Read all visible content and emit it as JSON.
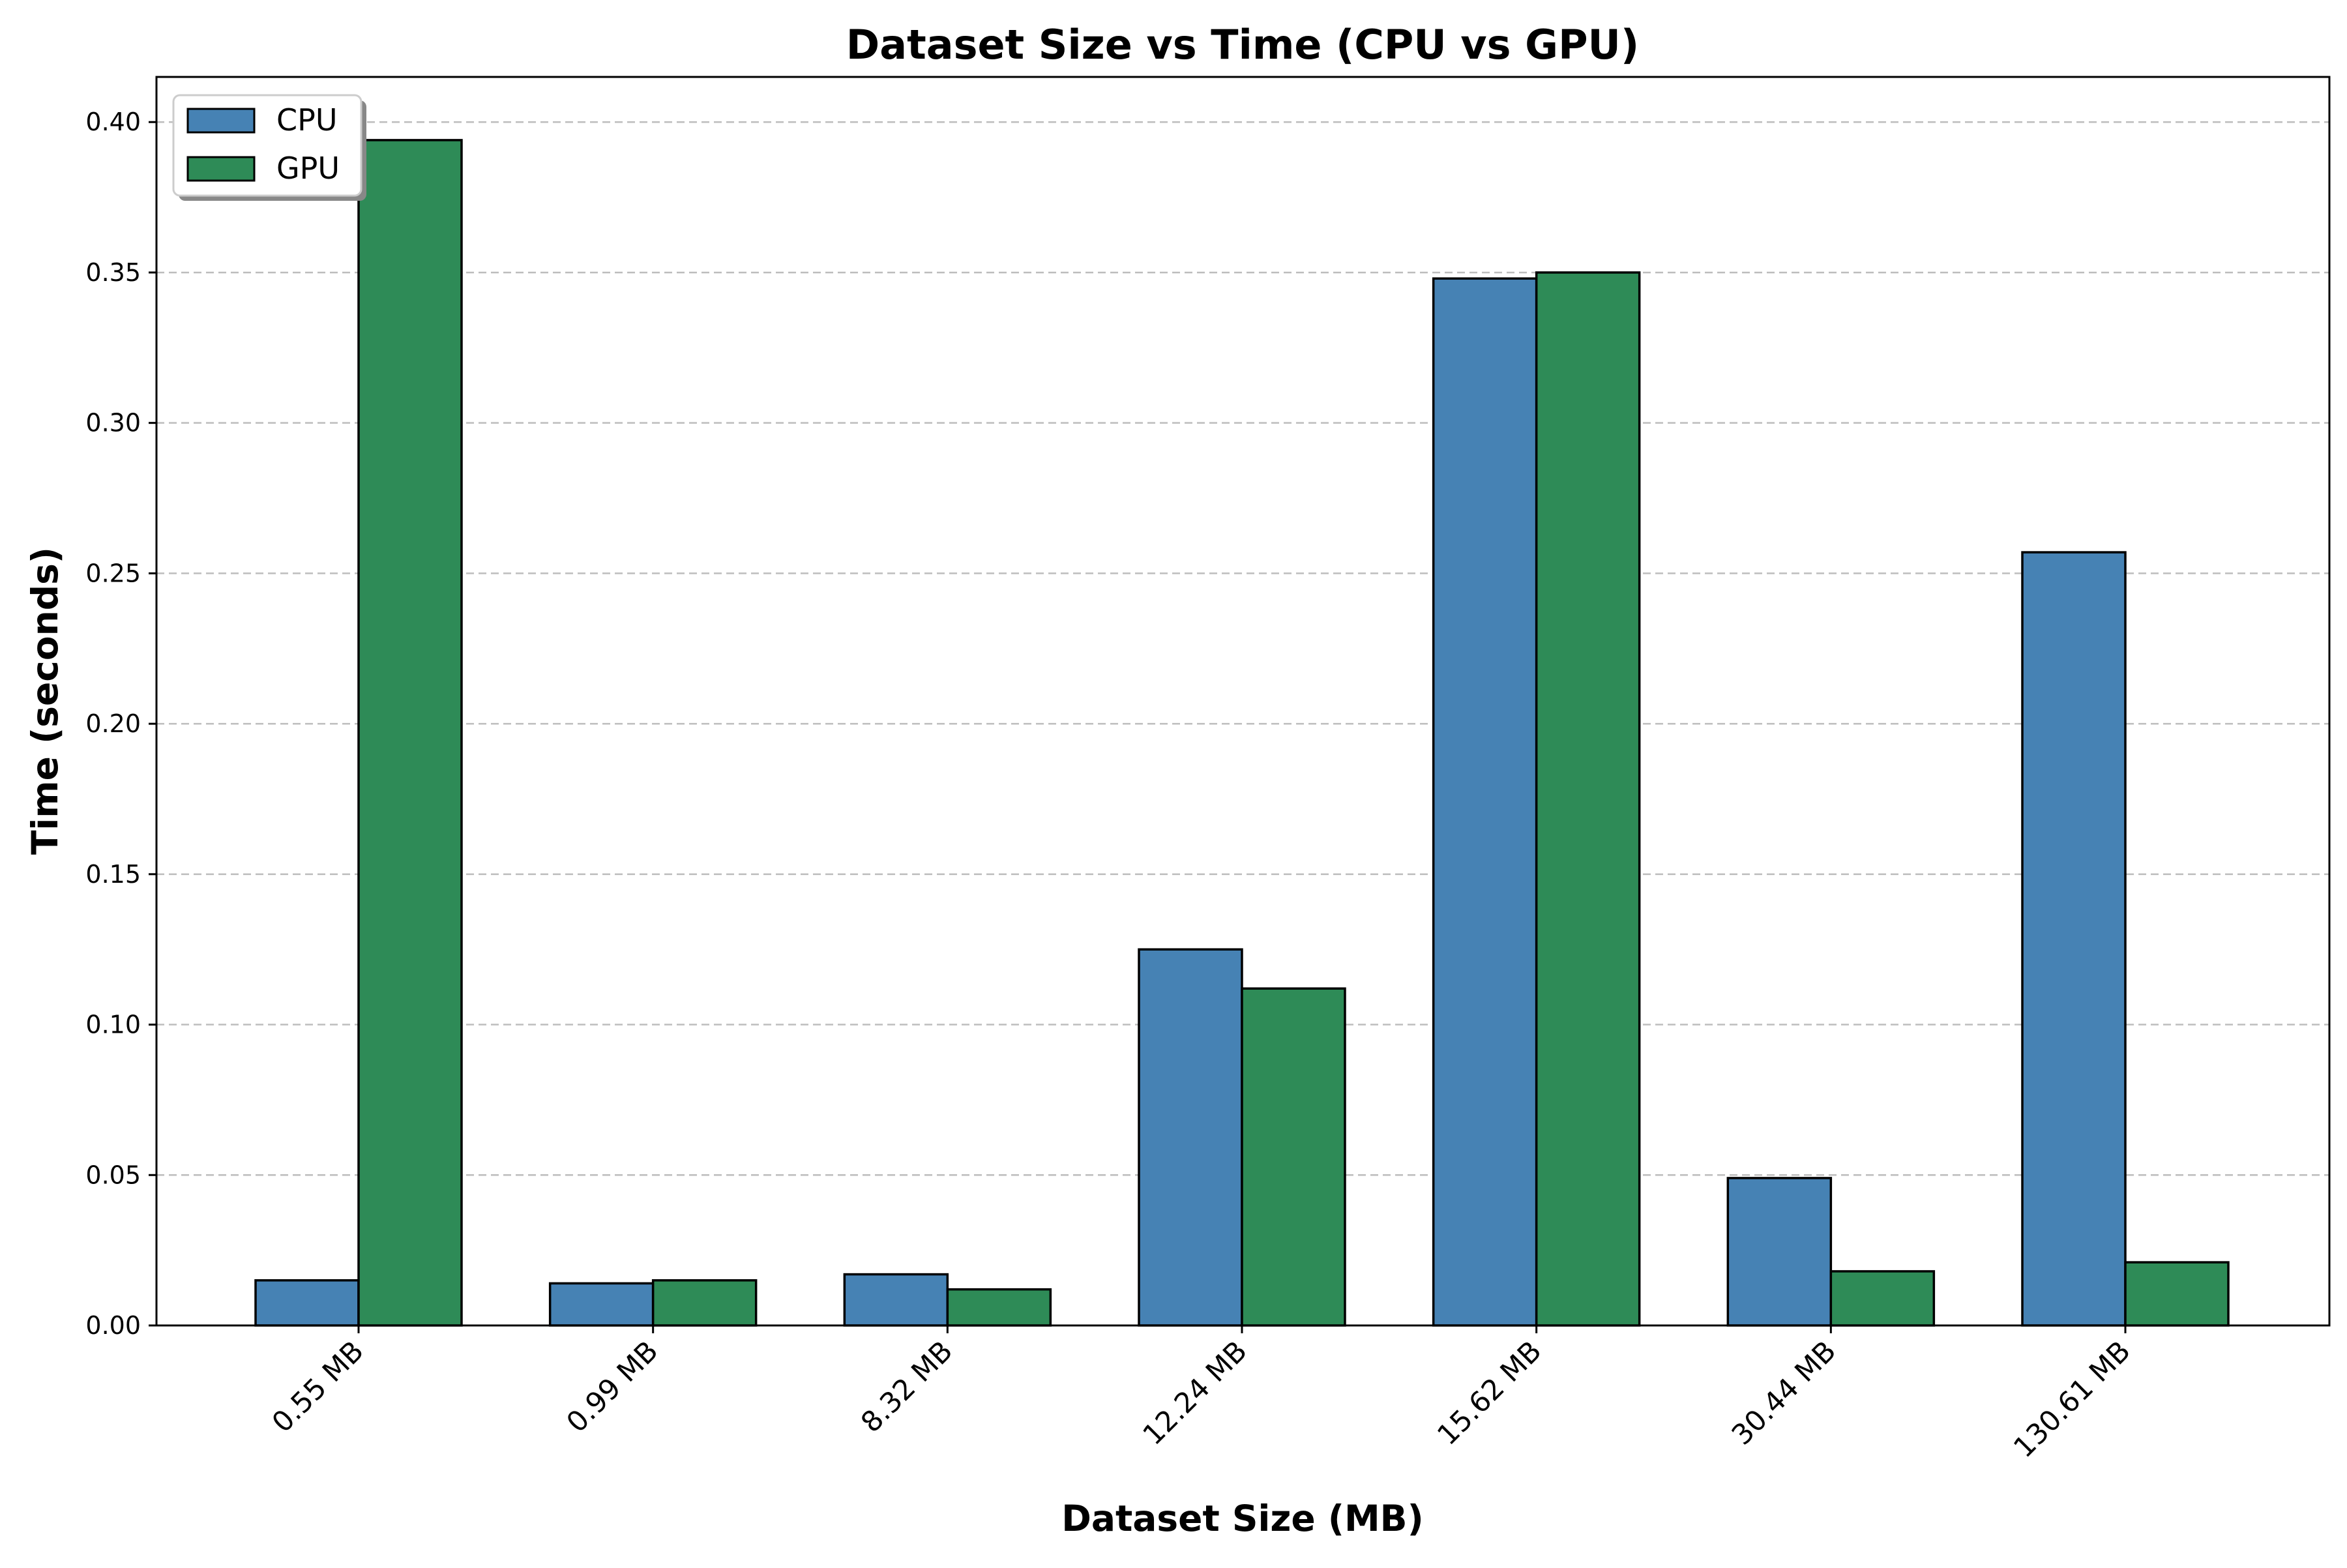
{
  "chart_data": {
    "type": "bar",
    "title": "Dataset Size vs Time (CPU vs GPU)",
    "xlabel": "Dataset Size (MB)",
    "ylabel": "Time (seconds)",
    "categories": [
      "0.55 MB",
      "0.99 MB",
      "8.32 MB",
      "12.24 MB",
      "15.62 MB",
      "30.44 MB",
      "130.61 MB"
    ],
    "series": [
      {
        "name": "CPU",
        "color": "#4682b4",
        "values": [
          0.015,
          0.014,
          0.017,
          0.125,
          0.348,
          0.049,
          0.257
        ]
      },
      {
        "name": "GPU",
        "color": "#2e8b57",
        "values": [
          0.394,
          0.015,
          0.012,
          0.112,
          0.35,
          0.018,
          0.021
        ]
      }
    ],
    "ylim": [
      0,
      0.415
    ],
    "yticks": [
      "0.00",
      "0.05",
      "0.10",
      "0.15",
      "0.20",
      "0.25",
      "0.30",
      "0.35",
      "0.40"
    ],
    "grid": "y-dashed",
    "legend_position": "top-left"
  }
}
